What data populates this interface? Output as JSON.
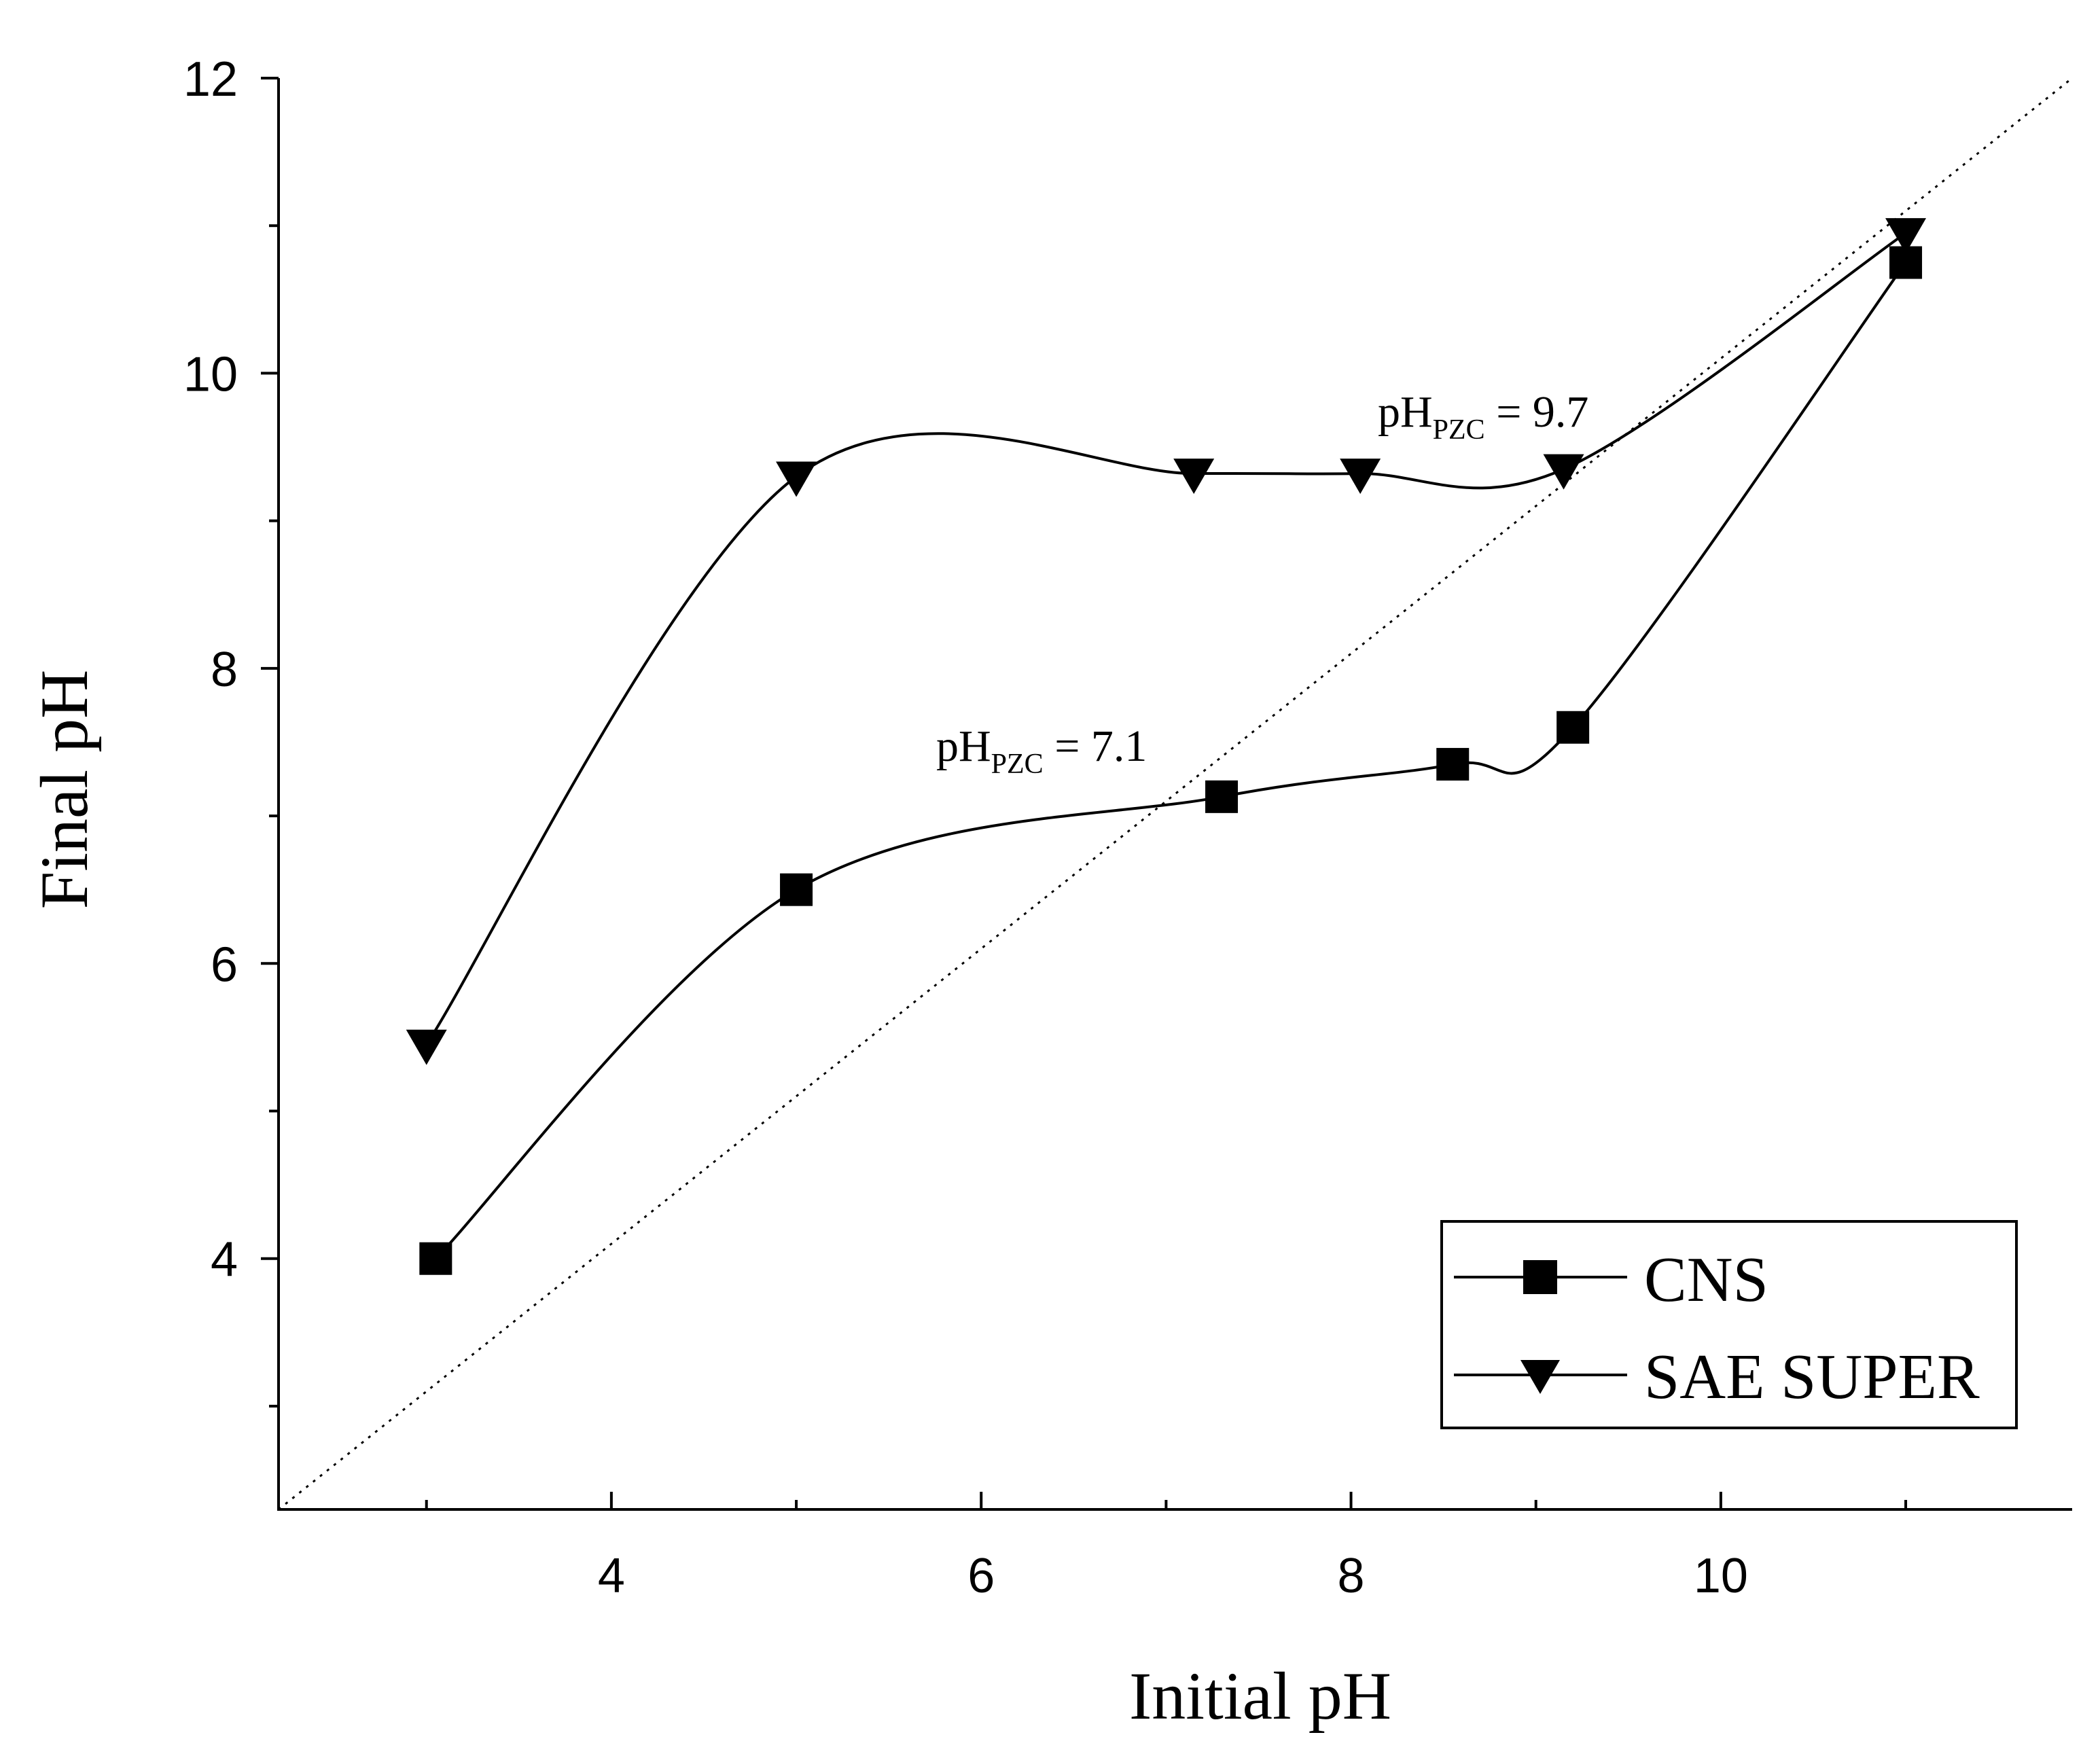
{
  "chart_data": {
    "type": "line",
    "title": "",
    "xlabel": "Initial pH",
    "ylabel": "Final pH",
    "xlim": [
      2.2,
      11.9
    ],
    "ylim": [
      2.3,
      12.0
    ],
    "x_ticks": [
      4,
      6,
      8,
      10
    ],
    "x_tick_labels": [
      "4",
      "6",
      "8",
      "10"
    ],
    "x_minor_ticks": [
      3,
      5,
      7,
      9,
      11
    ],
    "y_ticks": [
      4,
      6,
      8,
      10,
      12
    ],
    "y_tick_labels": [
      "4",
      "6",
      "8",
      "10",
      "12"
    ],
    "y_minor_ticks": [
      3,
      5,
      7,
      9,
      11
    ],
    "grid": false,
    "legend_position": "bottom-right",
    "reference_line": {
      "style": "dotted",
      "x": [
        2.2,
        11.9
      ],
      "y": [
        2.3,
        12.0
      ]
    },
    "series": [
      {
        "name": "CNS",
        "marker": "square",
        "x": [
          3.05,
          5.0,
          7.3,
          8.55,
          9.2,
          11.0
        ],
        "y": [
          4.0,
          6.5,
          7.13,
          7.35,
          7.6,
          10.75
        ]
      },
      {
        "name": "SAE SUPER",
        "marker": "triangle-down",
        "x": [
          3.0,
          5.0,
          7.15,
          8.05,
          9.15,
          11.0
        ],
        "y": [
          5.45,
          9.3,
          9.32,
          9.32,
          9.35,
          10.95
        ]
      }
    ],
    "annotations": [
      {
        "prefix": "pH",
        "subscript": "PZC",
        "suffix": " = 9.7"
      },
      {
        "prefix": "pH",
        "subscript": "PZC",
        "suffix": " = 7.1"
      }
    ]
  }
}
